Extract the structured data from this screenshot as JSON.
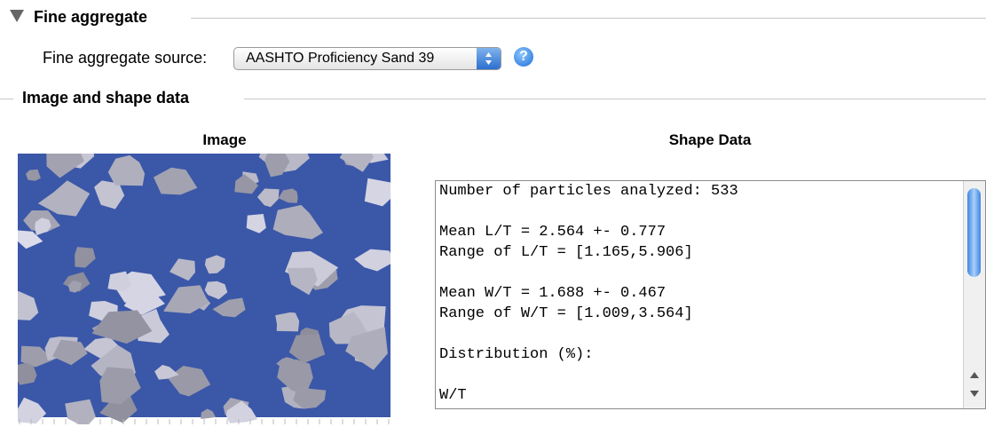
{
  "section": {
    "title": "Fine aggregate"
  },
  "source": {
    "label": "Fine aggregate source:",
    "selected": "AASHTO Proficiency Sand 39"
  },
  "subsection": {
    "title": "Image and shape data"
  },
  "image_panel": {
    "title": "Image"
  },
  "shape_panel": {
    "title": "Shape Data",
    "blocks": [
      [
        "Number of particles analyzed: 533"
      ],
      [
        "Mean L/T = 2.564 +- 0.777",
        "Range of L/T = [1.165,5.906]"
      ],
      [
        "Mean W/T = 1.688 +- 0.467",
        "Range of W/T = [1.009,3.564]"
      ],
      [
        "Distribution (%):"
      ],
      [
        "W/T"
      ]
    ]
  }
}
